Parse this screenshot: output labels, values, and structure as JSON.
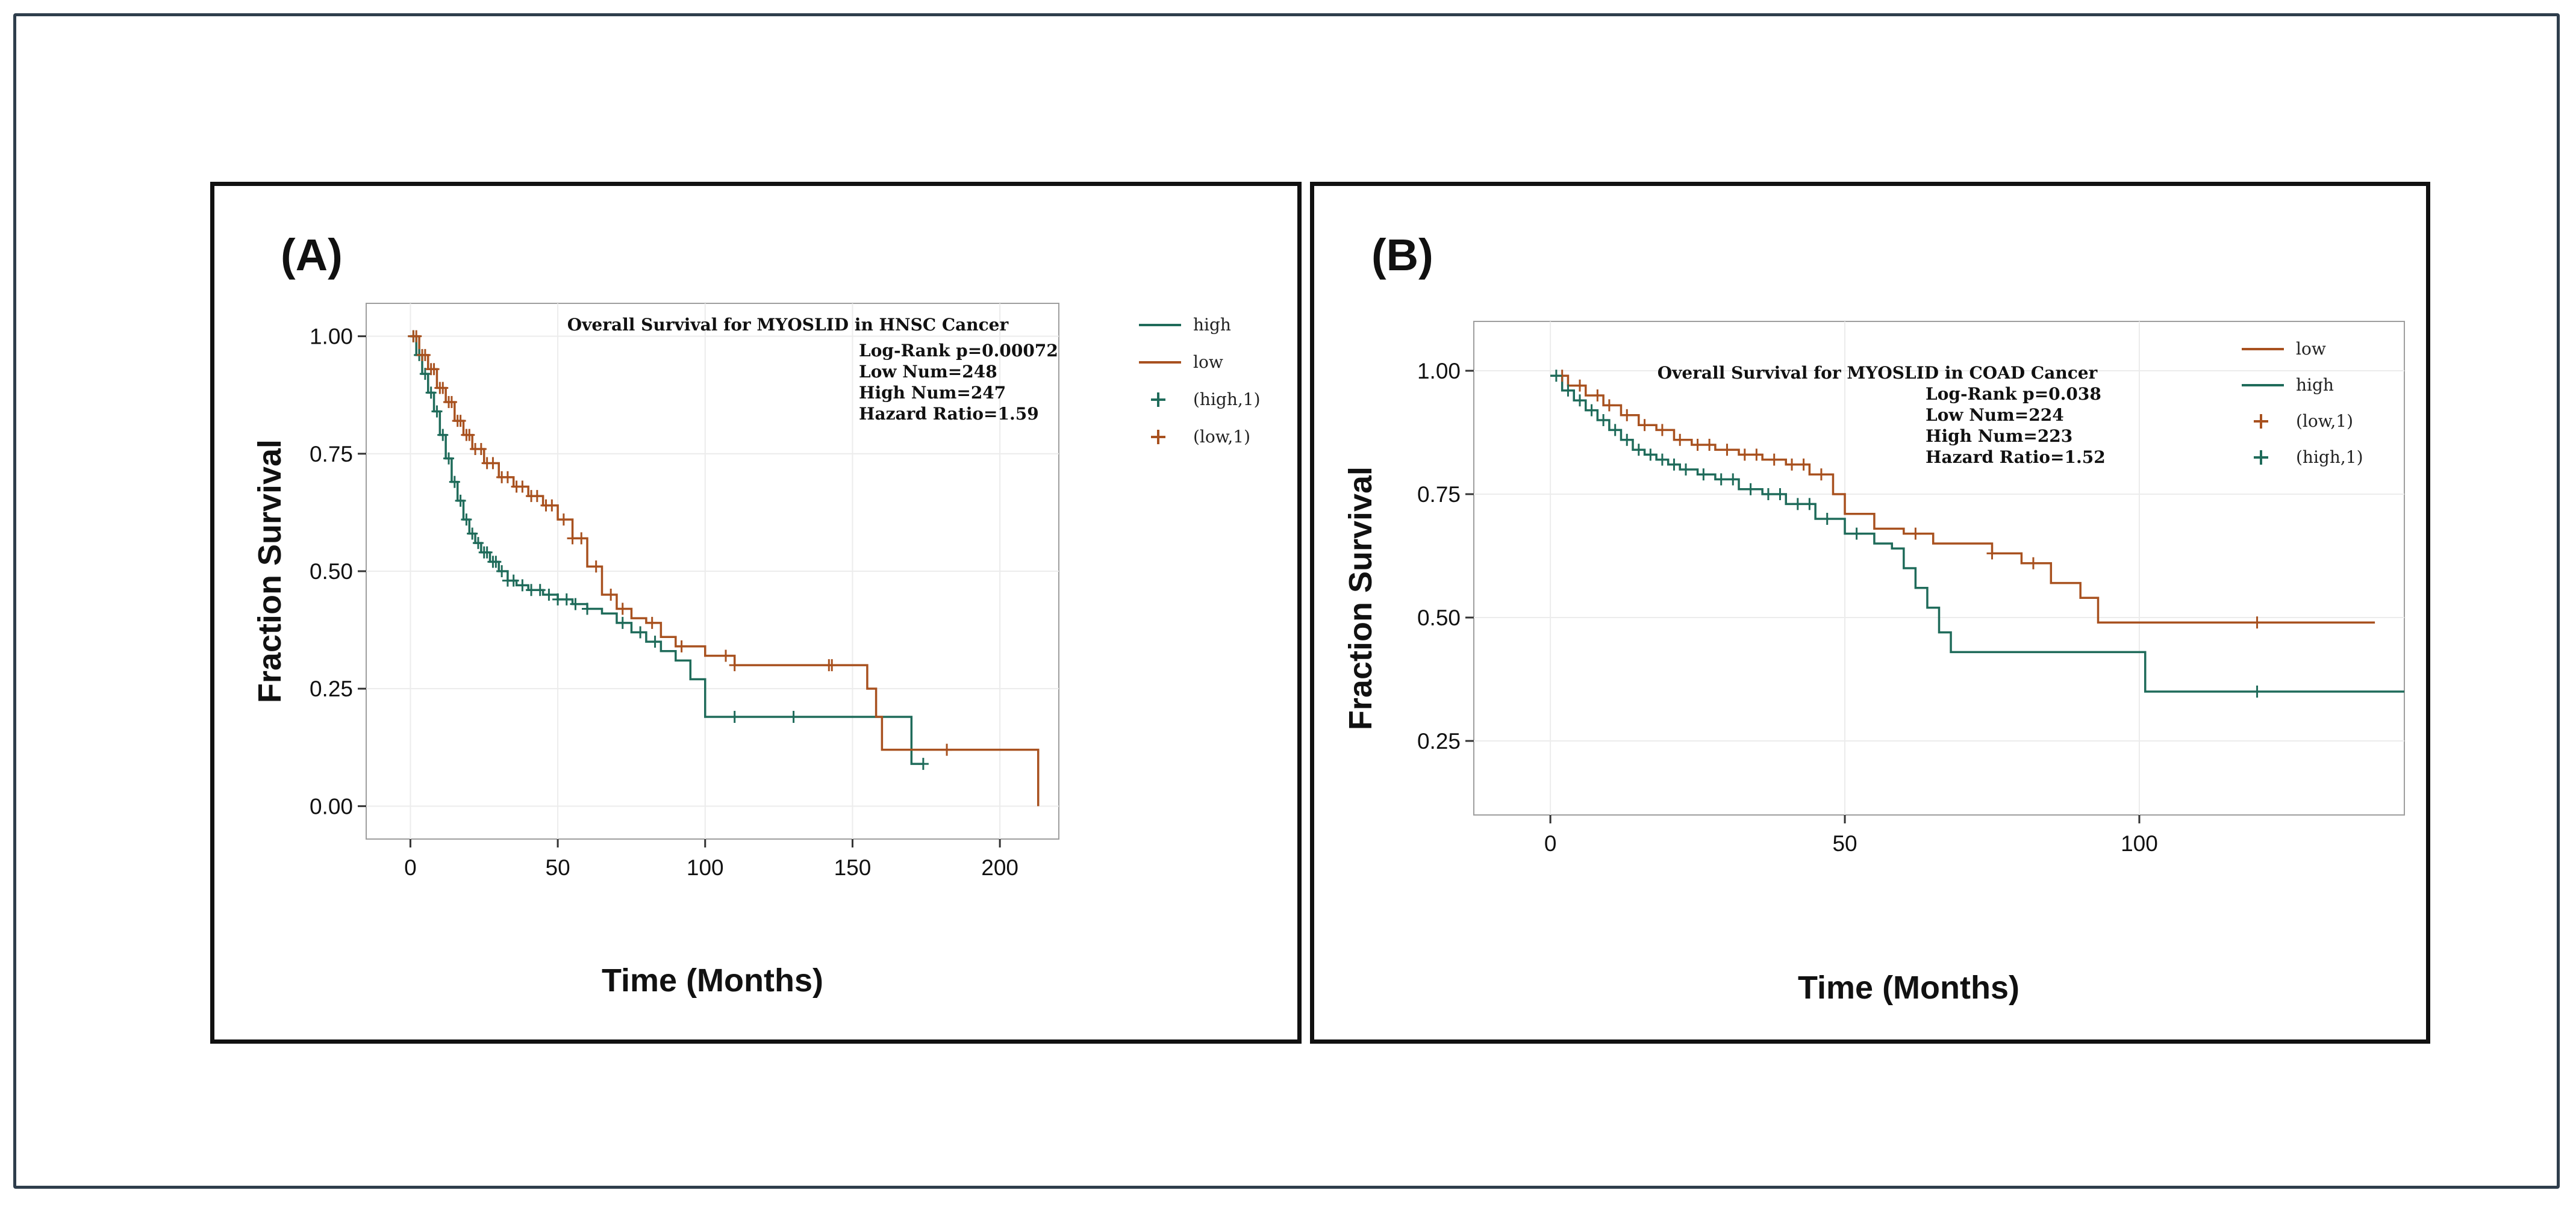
{
  "colors": {
    "high": "#1f6b5a",
    "low": "#a8511f",
    "frame": "#2f3e4c"
  },
  "chart_data": [
    {
      "type": "line",
      "panel_label": "(A)",
      "title": "Overall Survival for MYOSLID in HNSC Cancer",
      "annotations": [
        "Log-Rank p=0.00072",
        "Low Num=248",
        "High Num=247",
        "Hazard Ratio=1.59"
      ],
      "xlabel": "Time (Months)",
      "ylabel": "Fraction Survival",
      "xlim": [
        -15,
        220
      ],
      "ylim": [
        -0.07,
        1.07
      ],
      "xticks": [
        0,
        50,
        100,
        150,
        200
      ],
      "yticks": [
        0.0,
        0.25,
        0.5,
        0.75,
        1.0
      ],
      "xtick_labels": [
        "0",
        "50",
        "100",
        "150",
        "200"
      ],
      "ytick_labels": [
        "0.00",
        "0.25",
        "0.50",
        "0.75",
        "1.00"
      ],
      "legend": [
        "high",
        "low",
        "(high,1)",
        "(low,1)"
      ],
      "legend_position": "right",
      "series": [
        {
          "name": "high",
          "censor_label": "(high,1)",
          "x": [
            0,
            2,
            4,
            6,
            8,
            10,
            12,
            14,
            16,
            18,
            20,
            22,
            24,
            27,
            30,
            33,
            36,
            40,
            45,
            50,
            55,
            60,
            65,
            70,
            75,
            80,
            85,
            90,
            95,
            100,
            130,
            170,
            174
          ],
          "y": [
            1.0,
            0.96,
            0.92,
            0.88,
            0.84,
            0.79,
            0.74,
            0.69,
            0.65,
            0.61,
            0.58,
            0.56,
            0.54,
            0.52,
            0.5,
            0.48,
            0.47,
            0.46,
            0.45,
            0.44,
            0.43,
            0.42,
            0.41,
            0.39,
            0.37,
            0.35,
            0.33,
            0.31,
            0.27,
            0.19,
            0.19,
            0.09,
            0.09
          ],
          "censor_x": [
            1,
            3,
            5,
            7,
            9,
            11,
            13,
            15,
            17,
            19,
            21,
            23,
            25,
            26,
            28,
            29,
            31,
            33,
            35,
            38,
            41,
            44,
            47,
            50,
            53,
            56,
            60,
            72,
            78,
            83,
            110,
            130,
            174
          ]
        },
        {
          "name": "low",
          "censor_label": "(low,1)",
          "x": [
            0,
            3,
            6,
            9,
            12,
            15,
            18,
            21,
            25,
            30,
            35,
            40,
            45,
            50,
            55,
            60,
            65,
            70,
            75,
            80,
            85,
            90,
            100,
            110,
            120,
            130,
            140,
            150,
            155,
            158,
            160,
            180,
            200,
            213
          ],
          "y": [
            1.0,
            0.96,
            0.93,
            0.89,
            0.86,
            0.82,
            0.79,
            0.76,
            0.73,
            0.7,
            0.68,
            0.66,
            0.64,
            0.61,
            0.57,
            0.51,
            0.45,
            0.42,
            0.4,
            0.39,
            0.36,
            0.34,
            0.32,
            0.3,
            0.3,
            0.3,
            0.3,
            0.3,
            0.25,
            0.19,
            0.12,
            0.12,
            0.12,
            0.0
          ],
          "censor_x": [
            1,
            2,
            4,
            5,
            7,
            8,
            10,
            11,
            13,
            14,
            16,
            17,
            19,
            20,
            22,
            24,
            26,
            28,
            31,
            33,
            36,
            38,
            41,
            43,
            46,
            48,
            52,
            55,
            58,
            63,
            68,
            72,
            82,
            92,
            107,
            110,
            142,
            143,
            182
          ]
        }
      ]
    },
    {
      "type": "line",
      "panel_label": "(B)",
      "title": "Overall Survival for MYOSLID in COAD Cancer",
      "annotations": [
        "Log-Rank p=0.038",
        "Low Num=224",
        "High Num=223",
        "Hazard Ratio=1.52"
      ],
      "xlabel": "Time (Months)",
      "ylabel": "Fraction Survival",
      "xlim": [
        -13,
        145
      ],
      "ylim": [
        0.1,
        1.1
      ],
      "xticks": [
        0,
        50,
        100
      ],
      "yticks": [
        0.25,
        0.5,
        0.75,
        1.0
      ],
      "xtick_labels": [
        "0",
        "50",
        "100"
      ],
      "ytick_labels": [
        "0.25",
        "0.50",
        "0.75",
        "1.00"
      ],
      "legend": [
        "low",
        "high",
        "(low,1)",
        "(high,1)"
      ],
      "legend_position": "right",
      "series": [
        {
          "name": "low",
          "censor_label": "(low,1)",
          "x": [
            0,
            3,
            6,
            9,
            12,
            15,
            18,
            21,
            24,
            28,
            32,
            36,
            40,
            44,
            48,
            50,
            55,
            60,
            65,
            70,
            75,
            80,
            85,
            90,
            93,
            100,
            120,
            140
          ],
          "y": [
            0.99,
            0.97,
            0.95,
            0.93,
            0.91,
            0.89,
            0.88,
            0.86,
            0.85,
            0.84,
            0.83,
            0.82,
            0.81,
            0.79,
            0.75,
            0.71,
            0.68,
            0.67,
            0.65,
            0.65,
            0.63,
            0.61,
            0.57,
            0.54,
            0.49,
            0.49,
            0.49,
            0.49
          ],
          "censor_x": [
            2,
            5,
            8,
            10,
            13,
            16,
            19,
            22,
            25,
            27,
            30,
            33,
            35,
            38,
            41,
            43,
            46,
            62,
            75,
            82,
            120
          ]
        },
        {
          "name": "high",
          "censor_label": "(high,1)",
          "x": [
            0,
            2,
            4,
            6,
            8,
            10,
            12,
            14,
            16,
            18,
            20,
            22,
            25,
            28,
            32,
            36,
            40,
            45,
            50,
            55,
            58,
            60,
            62,
            64,
            66,
            68,
            75,
            90,
            101,
            120,
            145
          ],
          "y": [
            0.99,
            0.96,
            0.94,
            0.92,
            0.9,
            0.88,
            0.86,
            0.84,
            0.83,
            0.82,
            0.81,
            0.8,
            0.79,
            0.78,
            0.76,
            0.75,
            0.73,
            0.7,
            0.67,
            0.65,
            0.64,
            0.6,
            0.56,
            0.52,
            0.47,
            0.43,
            0.43,
            0.43,
            0.35,
            0.35,
            0.35
          ],
          "censor_x": [
            1,
            3,
            5,
            7,
            9,
            11,
            13,
            15,
            17,
            19,
            21,
            23,
            26,
            29,
            31,
            34,
            37,
            39,
            42,
            44,
            47,
            52,
            120
          ]
        }
      ]
    }
  ]
}
